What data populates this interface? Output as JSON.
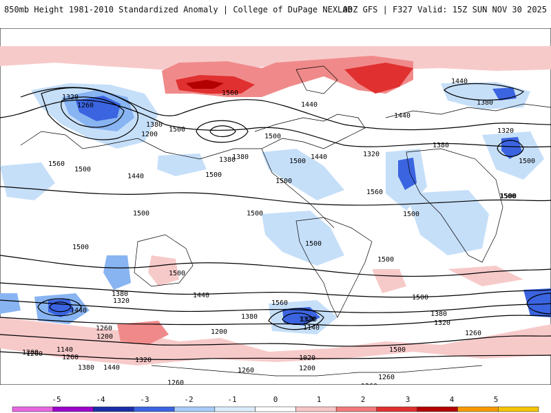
{
  "header": {
    "title_left": "850mb Height 1981-2010 Standardized Anomaly | College of DuPage NEXLAB",
    "title_right": "00Z GFS | F327 Valid: 15Z SUN NOV 30 2025"
  },
  "colorbar": {
    "tick_labels": [
      "-5",
      "-4",
      "-3",
      "-2",
      "-1",
      "0",
      "1",
      "2",
      "3",
      "4",
      "5"
    ],
    "colors": [
      "#e766e0",
      "#9b00c9",
      "#1a2fa6",
      "#3b64e0",
      "#a8cbf8",
      "#dcecfd",
      "#ffffff",
      "#f6c6c6",
      "#f07a7a",
      "#e03030",
      "#b30000",
      "#f59a00",
      "#f5c400"
    ]
  },
  "map": {
    "anomaly_colors": {
      "weak_neg": "#c6dff9",
      "mod_neg": "#88b4f2",
      "strong_neg": "#3b64e0",
      "core_neg": "#1a2fa6",
      "weak_pos": "#f7caca",
      "mod_pos": "#f08a8a",
      "strong_pos": "#e03030",
      "core_pos": "#b30000"
    },
    "contour_labels": [
      "1320",
      "1260",
      "1560",
      "1380",
      "1200",
      "1500",
      "1440",
      "1440",
      "1380",
      "1500",
      "1440",
      "1560",
      "1500",
      "1440",
      "1380",
      "1320",
      "1380",
      "1500",
      "1320",
      "1500",
      "1560",
      "1500",
      "1500",
      "1500",
      "1500",
      "1500",
      "1500",
      "1440",
      "1500",
      "1500",
      "1500",
      "1380",
      "1320",
      "1500",
      "1560",
      "1440",
      "1320",
      "1440",
      "1380",
      "1320",
      "1260",
      "1200",
      "1140",
      "1260",
      "1200",
      "1260",
      "1380",
      "1440",
      "1320",
      "1380",
      "1320",
      "1140",
      "1020",
      "1200",
      "1260",
      "1320",
      "1260",
      "1260",
      "1260",
      "1320",
      "1380",
      "1500",
      "1500",
      "1500",
      "1200",
      "1260",
      "1200",
      "1380"
    ]
  }
}
